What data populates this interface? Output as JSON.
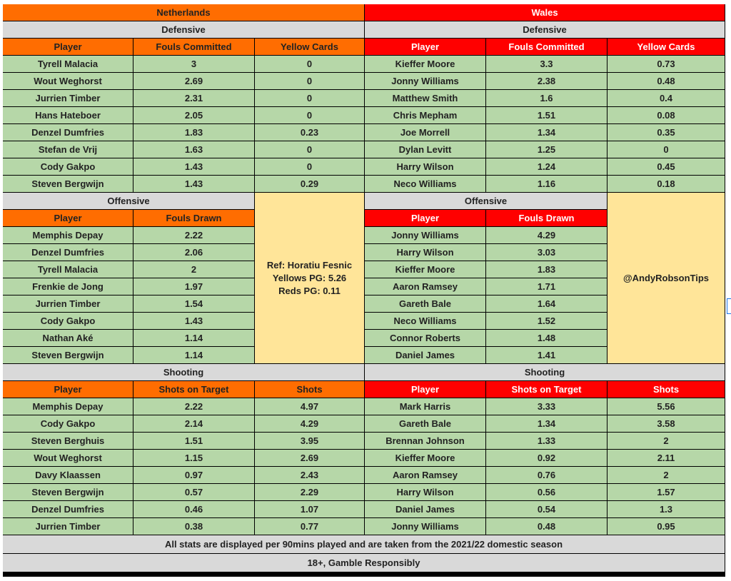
{
  "teams": {
    "left": {
      "name": "Netherlands",
      "defensive": {
        "label": "Defensive",
        "headers": [
          "Player",
          "Fouls Committed",
          "Yellow Cards"
        ],
        "rows": [
          [
            "Tyrell Malacia",
            "3",
            "0"
          ],
          [
            "Wout Weghorst",
            "2.69",
            "0"
          ],
          [
            "Jurrien Timber",
            "2.31",
            "0"
          ],
          [
            "Hans Hateboer",
            "2.05",
            "0"
          ],
          [
            "Denzel Dumfries",
            "1.83",
            "0.23"
          ],
          [
            "Stefan de Vrij",
            "1.63",
            "0"
          ],
          [
            "Cody Gakpo",
            "1.43",
            "0"
          ],
          [
            "Steven Bergwijn",
            "1.43",
            "0.29"
          ]
        ]
      },
      "offensive": {
        "label": "Offensive",
        "headers": [
          "Player",
          "Fouls Drawn"
        ],
        "rows": [
          [
            "Memphis Depay",
            "2.22"
          ],
          [
            "Denzel Dumfries",
            "2.06"
          ],
          [
            "Tyrell Malacia",
            "2"
          ],
          [
            "Frenkie de Jong",
            "1.97"
          ],
          [
            "Jurrien Timber",
            "1.54"
          ],
          [
            "Cody Gakpo",
            "1.43"
          ],
          [
            "Nathan Aké",
            "1.14"
          ],
          [
            "Steven Bergwijn",
            "1.14"
          ]
        ]
      },
      "shooting": {
        "label": "Shooting",
        "headers": [
          "Player",
          "Shots on Target",
          "Shots"
        ],
        "rows": [
          [
            "Memphis Depay",
            "2.22",
            "4.97"
          ],
          [
            "Cody Gakpo",
            "2.14",
            "4.29"
          ],
          [
            "Steven Berghuis",
            "1.51",
            "3.95"
          ],
          [
            "Wout Weghorst",
            "1.15",
            "2.69"
          ],
          [
            "Davy Klaassen",
            "0.97",
            "2.43"
          ],
          [
            "Steven Bergwijn",
            "0.57",
            "2.29"
          ],
          [
            "Denzel Dumfries",
            "0.46",
            "1.07"
          ],
          [
            "Jurrien Timber",
            "0.38",
            "0.77"
          ]
        ]
      }
    },
    "right": {
      "name": "Wales",
      "defensive": {
        "label": "Defensive",
        "headers": [
          "Player",
          "Fouls Committed",
          "Yellow Cards"
        ],
        "rows": [
          [
            "Kieffer Moore",
            "3.3",
            "0.73"
          ],
          [
            "Jonny Williams",
            "2.38",
            "0.48"
          ],
          [
            "Matthew Smith",
            "1.6",
            "0.4"
          ],
          [
            "Chris Mepham",
            "1.51",
            "0.08"
          ],
          [
            "Joe Morrell",
            "1.34",
            "0.35"
          ],
          [
            "Dylan Levitt",
            "1.25",
            "0"
          ],
          [
            "Harry Wilson",
            "1.24",
            "0.45"
          ],
          [
            "Neco Williams",
            "1.16",
            "0.18"
          ]
        ]
      },
      "offensive": {
        "label": "Offensive",
        "headers": [
          "Player",
          "Fouls Drawn"
        ],
        "rows": [
          [
            "Jonny Williams",
            "4.29"
          ],
          [
            "Harry Wilson",
            "3.03"
          ],
          [
            "Kieffer Moore",
            "1.83"
          ],
          [
            "Aaron Ramsey",
            "1.71"
          ],
          [
            "Gareth Bale",
            "1.64"
          ],
          [
            "Neco Williams",
            "1.52"
          ],
          [
            "Connor Roberts",
            "1.48"
          ],
          [
            "Daniel James",
            "1.41"
          ]
        ]
      },
      "shooting": {
        "label": "Shooting",
        "headers": [
          "Player",
          "Shots on Target",
          "Shots"
        ],
        "rows": [
          [
            "Mark Harris",
            "3.33",
            "5.56"
          ],
          [
            "Gareth Bale",
            "1.34",
            "3.58"
          ],
          [
            "Brennan Johnson",
            "1.33",
            "2"
          ],
          [
            "Kieffer Moore",
            "0.92",
            "2.11"
          ],
          [
            "Aaron Ramsey",
            "0.76",
            "2"
          ],
          [
            "Harry Wilson",
            "0.56",
            "1.57"
          ],
          [
            "Daniel James",
            "0.54",
            "1.3"
          ],
          [
            "Jonny Williams",
            "0.48",
            "0.95"
          ]
        ]
      }
    }
  },
  "referee": {
    "line1": "Ref: Horatiu Fesnic",
    "line2": "Yellows PG: 5.26",
    "line3": "Reds PG: 0.11"
  },
  "handle": "@AndyRobsonTips",
  "footer": {
    "note": "All stats are displayed per 90mins played and are taken from the 2021/22 domestic season",
    "disclaimer": "18+, Gamble Responsibly"
  },
  "colors": {
    "netherlands_header": "#ff6d01",
    "wales_header": "#ff0000",
    "data_cell": "#b6d7a8",
    "section_header": "#d9d9d9",
    "info_box": "#ffe599"
  }
}
